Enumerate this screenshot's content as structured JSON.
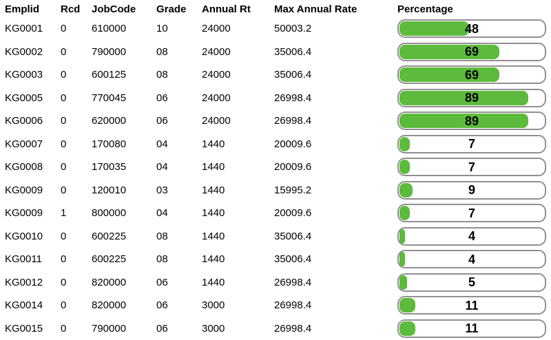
{
  "chart_data": {
    "type": "table",
    "columns": [
      "Emplid",
      "Rcd",
      "JobCode",
      "Grade",
      "Annual Rt",
      "Max Annual Rate",
      "Percentage"
    ],
    "rows": [
      [
        "KG0001",
        "0",
        "610000",
        "10",
        "24000",
        "50003.2",
        48
      ],
      [
        "KG0002",
        "0",
        "790000",
        "08",
        "24000",
        "35006.4",
        69
      ],
      [
        "KG0003",
        "0",
        "600125",
        "08",
        "24000",
        "35006.4",
        69
      ],
      [
        "KG0005",
        "0",
        "770045",
        "06",
        "24000",
        "26998.4",
        89
      ],
      [
        "KG0006",
        "0",
        "620000",
        "06",
        "24000",
        "26998.4",
        89
      ],
      [
        "KG0007",
        "0",
        "170080",
        "04",
        "1440",
        "20009.6",
        7
      ],
      [
        "KG0008",
        "0",
        "170035",
        "04",
        "1440",
        "20009.6",
        7
      ],
      [
        "KG0009",
        "0",
        "120010",
        "03",
        "1440",
        "15995.2",
        9
      ],
      [
        "KG0009",
        "1",
        "800000",
        "04",
        "1440",
        "20009.6",
        7
      ],
      [
        "KG0010",
        "0",
        "600225",
        "08",
        "1440",
        "35006.4",
        4
      ],
      [
        "KG0011",
        "0",
        "600225",
        "08",
        "1440",
        "35006.4",
        4
      ],
      [
        "KG0012",
        "0",
        "820000",
        "06",
        "1440",
        "26998.4",
        5
      ],
      [
        "KG0014",
        "0",
        "820000",
        "06",
        "3000",
        "26998.4",
        11
      ],
      [
        "KG0015",
        "0",
        "790000",
        "06",
        "3000",
        "26998.4",
        11
      ]
    ],
    "embedded_bar_column": {
      "column": "Percentage",
      "style": "horizontal-progress-bar",
      "range": [
        0,
        100
      ],
      "values": [
        48,
        69,
        69,
        89,
        89,
        7,
        7,
        9,
        7,
        4,
        4,
        5,
        11,
        11
      ]
    }
  },
  "colors": {
    "bar_fill": "#5cbb3c",
    "bar_border": "#909090",
    "bar_background": "#ffffff",
    "text": "#000000"
  }
}
